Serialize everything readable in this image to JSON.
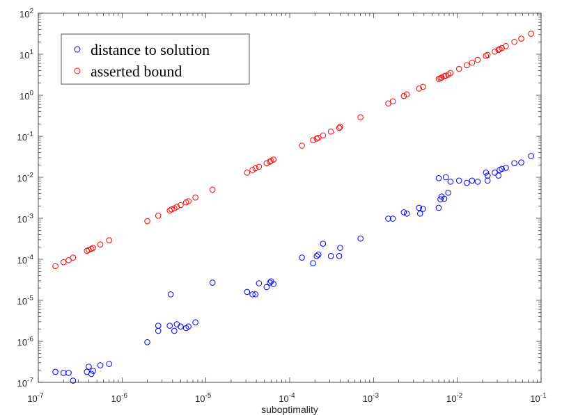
{
  "chart_data": {
    "type": "scatter",
    "title": "",
    "xlabel": "suboptimality",
    "ylabel": "",
    "xscale": "log",
    "yscale": "log",
    "xlim": [
      1e-07,
      0.1
    ],
    "ylim": [
      1e-07,
      100
    ],
    "legend_position": "top-left",
    "x_ticks": [
      {
        "value": 1e-07,
        "base": "10",
        "exp": "-7"
      },
      {
        "value": 1e-06,
        "base": "10",
        "exp": "-6"
      },
      {
        "value": 1e-05,
        "base": "10",
        "exp": "-5"
      },
      {
        "value": 0.0001,
        "base": "10",
        "exp": "-4"
      },
      {
        "value": 0.001,
        "base": "10",
        "exp": "-3"
      },
      {
        "value": 0.01,
        "base": "10",
        "exp": "-2"
      },
      {
        "value": 0.1,
        "base": "10",
        "exp": "-1"
      }
    ],
    "y_ticks": [
      {
        "value": 1e-07,
        "base": "10",
        "exp": "-7"
      },
      {
        "value": 1e-06,
        "base": "10",
        "exp": "-6"
      },
      {
        "value": 1e-05,
        "base": "10",
        "exp": "-5"
      },
      {
        "value": 0.0001,
        "base": "10",
        "exp": "-4"
      },
      {
        "value": 0.001,
        "base": "10",
        "exp": "-3"
      },
      {
        "value": 0.01,
        "base": "10",
        "exp": "-2"
      },
      {
        "value": 0.1,
        "base": "10",
        "exp": "-1"
      },
      {
        "value": 1,
        "base": "10",
        "exp": "0"
      },
      {
        "value": 10,
        "base": "10",
        "exp": "1"
      },
      {
        "value": 100,
        "base": "10",
        "exp": "2"
      }
    ],
    "series": [
      {
        "name": "distance to solution",
        "color": "#0000ff",
        "points": [
          [
            1.6e-07,
            1.8e-07
          ],
          [
            2e-07,
            1.7e-07
          ],
          [
            2.3e-07,
            1.7e-07
          ],
          [
            2.6e-07,
            1.1e-07
          ],
          [
            3.8e-07,
            1.8e-07
          ],
          [
            4e-07,
            2.4e-07
          ],
          [
            4.3e-07,
            1.6e-07
          ],
          [
            4.5e-07,
            1.9e-07
          ],
          [
            5.5e-07,
            2.6e-07
          ],
          [
            7e-07,
            2.8e-07
          ],
          [
            2e-06,
            9.5e-07
          ],
          [
            2.7e-06,
            1.8e-06
          ],
          [
            2.7e-06,
            2.4e-06
          ],
          [
            3.7e-06,
            2.4e-06
          ],
          [
            3.8e-06,
            1.4e-05
          ],
          [
            4.2e-06,
            1.8e-06
          ],
          [
            4.5e-06,
            2.6e-06
          ],
          [
            5e-06,
            2.3e-06
          ],
          [
            5.8e-06,
            2.1e-06
          ],
          [
            6.2e-06,
            2.3e-06
          ],
          [
            7.5e-06,
            2.9e-06
          ],
          [
            1.2e-05,
            2.7e-05
          ],
          [
            3.1e-05,
            1.6e-05
          ],
          [
            3.6e-05,
            1.4e-05
          ],
          [
            3.9e-05,
            1.4e-05
          ],
          [
            4.3e-05,
            2.6e-05
          ],
          [
            5.3e-05,
            2.1e-05
          ],
          [
            5.8e-05,
            2.7e-05
          ],
          [
            6e-05,
            2.9e-05
          ],
          [
            6.4e-05,
            2.5e-05
          ],
          [
            0.00014,
            0.00011
          ],
          [
            0.00019,
            8e-05
          ],
          [
            0.00021,
            0.00012
          ],
          [
            0.00022,
            0.00013
          ],
          [
            0.00025,
            0.00024
          ],
          [
            0.00031,
            0.00012
          ],
          [
            0.00039,
            0.00012
          ],
          [
            0.0004,
            0.00019
          ],
          [
            0.0007,
            0.00032
          ],
          [
            0.0015,
            0.00098
          ],
          [
            0.0017,
            0.00098
          ],
          [
            0.0023,
            0.0014
          ],
          [
            0.0025,
            0.0013
          ],
          [
            0.0035,
            0.0018
          ],
          [
            0.0036,
            0.0013
          ],
          [
            0.0039,
            0.0017
          ],
          [
            0.006,
            0.0095
          ],
          [
            0.006,
            0.0018
          ],
          [
            0.0063,
            0.0029
          ],
          [
            0.0065,
            0.0034
          ],
          [
            0.007,
            0.003
          ],
          [
            0.0073,
            0.01
          ],
          [
            0.0078,
            0.0042
          ],
          [
            0.0083,
            0.0078
          ],
          [
            0.0105,
            0.0083
          ],
          [
            0.013,
            0.0073
          ],
          [
            0.015,
            0.0083
          ],
          [
            0.0175,
            0.0078
          ],
          [
            0.022,
            0.013
          ],
          [
            0.023,
            0.0083
          ],
          [
            0.023,
            0.011
          ],
          [
            0.028,
            0.013
          ],
          [
            0.031,
            0.011
          ],
          [
            0.032,
            0.015
          ],
          [
            0.034,
            0.016
          ],
          [
            0.038,
            0.017
          ],
          [
            0.048,
            0.022
          ],
          [
            0.058,
            0.023
          ],
          [
            0.076,
            0.033
          ]
        ]
      },
      {
        "name": "asserted bound",
        "color": "#ff0000",
        "points": [
          [
            1.6e-07,
            6.8e-05
          ],
          [
            2e-07,
            8.5e-05
          ],
          [
            2.3e-07,
            9.5e-05
          ],
          [
            2.6e-07,
            0.00011
          ],
          [
            3.8e-07,
            0.00016
          ],
          [
            4e-07,
            0.00017
          ],
          [
            4.3e-07,
            0.00018
          ],
          [
            4.5e-07,
            0.00019
          ],
          [
            5.5e-07,
            0.00023
          ],
          [
            7e-07,
            0.00029
          ],
          [
            2e-06,
            0.00085
          ],
          [
            2.7e-06,
            0.00115
          ],
          [
            3.7e-06,
            0.00155
          ],
          [
            3.9e-06,
            0.00165
          ],
          [
            4.2e-06,
            0.00175
          ],
          [
            4.5e-06,
            0.0019
          ],
          [
            5e-06,
            0.0021
          ],
          [
            5.8e-06,
            0.00245
          ],
          [
            6.2e-06,
            0.0026
          ],
          [
            7.5e-06,
            0.0032
          ],
          [
            1.2e-05,
            0.005
          ],
          [
            3.1e-05,
            0.013
          ],
          [
            3.6e-05,
            0.015
          ],
          [
            3.9e-05,
            0.0165
          ],
          [
            4.3e-05,
            0.018
          ],
          [
            5.3e-05,
            0.022
          ],
          [
            5.8e-05,
            0.024
          ],
          [
            6e-05,
            0.025
          ],
          [
            6.4e-05,
            0.027
          ],
          [
            0.00014,
            0.059
          ],
          [
            0.00019,
            0.08
          ],
          [
            0.00021,
            0.088
          ],
          [
            0.00022,
            0.092
          ],
          [
            0.00025,
            0.105
          ],
          [
            0.00031,
            0.13
          ],
          [
            0.00039,
            0.16
          ],
          [
            0.0004,
            0.17
          ],
          [
            0.0007,
            0.29
          ],
          [
            0.0015,
            0.63
          ],
          [
            0.0017,
            0.71
          ],
          [
            0.0023,
            0.96
          ],
          [
            0.0025,
            1.05
          ],
          [
            0.0035,
            1.45
          ],
          [
            0.0039,
            1.6
          ],
          [
            0.006,
            2.5
          ],
          [
            0.0063,
            2.6
          ],
          [
            0.0065,
            2.7
          ],
          [
            0.007,
            2.9
          ],
          [
            0.0073,
            3.0
          ],
          [
            0.0078,
            3.2
          ],
          [
            0.0083,
            3.5
          ],
          [
            0.0105,
            4.4
          ],
          [
            0.013,
            5.4
          ],
          [
            0.015,
            6.2
          ],
          [
            0.0175,
            7.3
          ],
          [
            0.022,
            9.1
          ],
          [
            0.023,
            9.6
          ],
          [
            0.028,
            11.6
          ],
          [
            0.031,
            12.8
          ],
          [
            0.032,
            13.3
          ],
          [
            0.034,
            14.1
          ],
          [
            0.038,
            15.8
          ],
          [
            0.048,
            20.0
          ],
          [
            0.058,
            24.0
          ],
          [
            0.076,
            31.5
          ]
        ]
      }
    ]
  }
}
